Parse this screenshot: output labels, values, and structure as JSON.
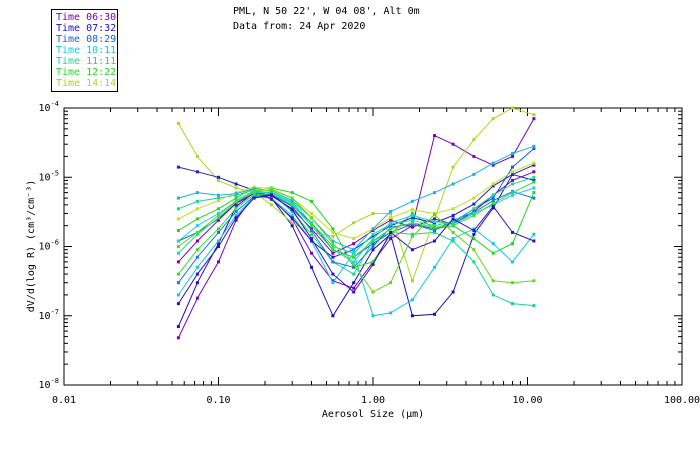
{
  "header": {
    "location": "PML, N 50 22', W 04 08', Alt 0m",
    "data_from": "Data from: 24 Apr 2020"
  },
  "legend": [
    {
      "label": "Time 06:30",
      "color": "#7a00b8"
    },
    {
      "label": "Time 07:32",
      "color": "#1a10c8"
    },
    {
      "label": "Time 08:29",
      "color": "#1060e8"
    },
    {
      "label": "Time 10:11",
      "color": "#10c8e8"
    },
    {
      "label": "Time 11:11",
      "color": "#10d890"
    },
    {
      "label": "Time 12:22",
      "color": "#20d820"
    },
    {
      "label": "Time 14:14",
      "color": "#a8d820"
    }
  ],
  "chart_data": {
    "type": "line",
    "title": "",
    "xlabel": "Aerosol Size (µm)",
    "ylabel": "dV/d(log R) (cm³/cm⁻³)",
    "xscale": "log",
    "yscale": "log",
    "xlim": [
      0.01,
      100
    ],
    "ylim": [
      1e-08,
      0.0001
    ],
    "x_ticks": [
      "0.01",
      "0.10",
      "1.00",
      "10.00",
      "100.00"
    ],
    "y_ticks": [
      {
        "base": "10",
        "exp": "-8"
      },
      {
        "base": "10",
        "exp": "-7"
      },
      {
        "base": "10",
        "exp": "-6"
      },
      {
        "base": "10",
        "exp": "-5"
      },
      {
        "base": "10",
        "exp": "-4"
      }
    ],
    "x": [
      0.055,
      0.073,
      0.1,
      0.13,
      0.17,
      0.22,
      0.3,
      0.4,
      0.55,
      0.75,
      1.0,
      1.3,
      1.8,
      2.5,
      3.3,
      4.5,
      6.0,
      8.0,
      11.0
    ],
    "series": [
      {
        "name": "Time 06:30",
        "color": "#7a00b8",
        "values": [
          4.8e-08,
          1.8e-07,
          6e-07,
          2.4e-06,
          5.5e-06,
          5e-06,
          2.5e-06,
          8e-07,
          3.2e-07,
          2.5e-07,
          6e-07,
          1.3e-06,
          2e-06,
          4e-05,
          3e-05,
          2e-05,
          1.5e-05,
          2e-05,
          7e-05
        ]
      },
      {
        "name": "Time 07:32",
        "color": "#1a10c8",
        "values": [
          7e-08,
          3e-07,
          1.1e-06,
          3.8e-06,
          6e-06,
          5e-06,
          2e-06,
          5e-07,
          1e-07,
          3e-07,
          9e-07,
          1.5e-06,
          1e-07,
          1.05e-07,
          2.2e-07,
          1.5e-06,
          3.6e-06,
          1.1e-05,
          9e-06
        ]
      },
      {
        "name": "Time 08:29",
        "color": "#1060e8",
        "values": [
          1.2e-06,
          1.6e-06,
          2.5e-06,
          4.2e-06,
          6.2e-06,
          5.5e-06,
          4e-06,
          2.2e-06,
          9e-07,
          7e-07,
          1.1e-06,
          1.6e-06,
          2.1e-06,
          1.8e-06,
          2.2e-06,
          3.5e-06,
          5e-06,
          1.4e-05,
          2.6e-05
        ]
      },
      {
        "name": "Time 10:11",
        "color": "#10c8e8",
        "values": [
          2e-07,
          5e-07,
          1.2e-06,
          2.8e-06,
          5.2e-06,
          5e-06,
          2.8e-06,
          1.2e-06,
          3e-07,
          8e-07,
          1e-07,
          1.1e-07,
          1.7e-07,
          5e-07,
          1.3e-06,
          1.8e-06,
          1.1e-06,
          6e-07,
          1.5e-06
        ]
      },
      {
        "name": "Time 11:11",
        "color": "#10d890",
        "values": [
          3.5e-06,
          4.5e-06,
          5e-06,
          5.5e-06,
          6.5e-06,
          5.8e-06,
          3.2e-06,
          1.5e-06,
          6e-07,
          4e-07,
          1.2e-06,
          1.6e-06,
          1.5e-06,
          1.6e-06,
          1.2e-06,
          6e-07,
          2e-07,
          1.5e-07,
          1.4e-07
        ]
      },
      {
        "name": "Time 12:22",
        "color": "#20d820",
        "values": [
          1.7e-06,
          2.5e-06,
          3.5e-06,
          5e-06,
          7e-06,
          7e-06,
          6e-06,
          4.5e-06,
          1.8e-06,
          5e-07,
          6e-07,
          1.5e-06,
          3e-06,
          1.8e-06,
          2e-06,
          1.3e-06,
          8e-07,
          1.1e-06,
          6e-06
        ]
      },
      {
        "name": "Time 14:14",
        "color": "#a8d820",
        "values": [
          6e-05,
          2e-05,
          9e-06,
          7e-06,
          6e-06,
          4e-06,
          2.2e-06,
          1.6e-06,
          1.4e-06,
          2.2e-06,
          3e-06,
          3e-06,
          3.2e-07,
          2.5e-06,
          1.4e-05,
          3.5e-05,
          7e-05,
          0.0001,
          8e-05
        ]
      },
      {
        "name": "Time 06:30",
        "color": "#8a00a8",
        "values": [
          6e-07,
          1.2e-06,
          2.4e-06,
          4.2e-06,
          5.8e-06,
          5.4e-06,
          3.5e-06,
          1.8e-06,
          8e-07,
          1.1e-06,
          1.7e-06,
          2.4e-06,
          1.9e-06,
          2.5e-06,
          2.1e-06,
          3.2e-06,
          5.5e-06,
          9e-06,
          1.2e-05
        ]
      },
      {
        "name": "Time 07:32",
        "color": "#2020d0",
        "values": [
          1.4e-05,
          1.2e-05,
          1e-05,
          8e-06,
          6.5e-06,
          4.8e-06,
          2.6e-06,
          1.2e-06,
          7e-07,
          9e-07,
          1.4e-06,
          2e-06,
          2.6e-06,
          2.2e-06,
          2.8e-06,
          4.1e-06,
          7.5e-06,
          1.1e-05,
          1.5e-05
        ]
      },
      {
        "name": "Time 08:29",
        "color": "#1478f0",
        "values": [
          3e-07,
          7e-07,
          1.6e-06,
          3.2e-06,
          5.3e-06,
          5.6e-06,
          3.8e-06,
          1.7e-06,
          6e-07,
          5e-07,
          1e-06,
          1.9e-06,
          2.1e-06,
          1.7e-06,
          2.4e-06,
          3.1e-06,
          4.6e-06,
          6.2e-06,
          5e-06
        ]
      },
      {
        "name": "Time 10:11",
        "color": "#18d0f0",
        "values": [
          1.2e-06,
          2e-06,
          3e-06,
          4.5e-06,
          6e-06,
          6e-06,
          4.2e-06,
          2e-06,
          9e-07,
          6e-07,
          1.3e-06,
          2.2e-06,
          2.8e-06,
          2.3e-06,
          2.1e-06,
          3e-06,
          4e-06,
          5.5e-06,
          7e-06
        ]
      },
      {
        "name": "Time 11:11",
        "color": "#10e0a0",
        "values": [
          8e-07,
          1.5e-06,
          2.6e-06,
          4.4e-06,
          6.2e-06,
          6.1e-06,
          4.4e-06,
          2.2e-06,
          1e-06,
          8e-07,
          1.5e-06,
          2.1e-06,
          2.4e-06,
          2e-06,
          2.3e-06,
          3.5e-06,
          5.5e-06,
          8e-06,
          1e-05
        ]
      },
      {
        "name": "Time 12:22",
        "color": "#30e030",
        "values": [
          4e-07,
          9e-07,
          1.8e-06,
          3.6e-06,
          5.6e-06,
          5.8e-06,
          4e-06,
          2e-06,
          9e-07,
          7e-07,
          1.2e-06,
          1.8e-06,
          2.2e-06,
          1.9e-06,
          2e-06,
          2.8e-06,
          4.2e-06,
          6e-06,
          8.5e-06
        ]
      },
      {
        "name": "Time 14:14",
        "color": "#c0e020",
        "values": [
          2.5e-06,
          3.5e-06,
          4.6e-06,
          6e-06,
          7.2e-06,
          6.8e-06,
          5e-06,
          3e-06,
          1.6e-06,
          1.3e-06,
          1.8e-06,
          2.6e-06,
          3.4e-06,
          3e-06,
          3.5e-06,
          5e-06,
          8e-06,
          1.2e-05,
          1.6e-05
        ]
      },
      {
        "name": "Time 07:32",
        "color": "#3010c0",
        "values": [
          1.5e-07,
          4e-07,
          1e-06,
          2.6e-06,
          5e-06,
          5.6e-06,
          3.4e-06,
          1.3e-06,
          4e-07,
          2.2e-07,
          5.5e-07,
          1.6e-06,
          9e-07,
          1.2e-06,
          2.5e-06,
          1.7e-06,
          3.8e-06,
          1.6e-06,
          1.2e-06
        ]
      },
      {
        "name": "Time 10:11",
        "color": "#20b0e8",
        "values": [
          5e-06,
          6e-06,
          5.5e-06,
          5.8e-06,
          6.8e-06,
          6.4e-06,
          4.6e-06,
          2.6e-06,
          1.2e-06,
          9e-07,
          1.8e-06,
          3.2e-06,
          4.5e-06,
          6e-06,
          8e-06,
          1.1e-05,
          1.6e-05,
          2.2e-05,
          2.8e-05
        ]
      },
      {
        "name": "Time 12:22",
        "color": "#60d818",
        "values": [
          1e-06,
          1.6e-06,
          2.8e-06,
          4.6e-06,
          6.4e-06,
          6.6e-06,
          5e-06,
          2.6e-06,
          1.1e-06,
          5.5e-07,
          2.2e-07,
          3e-07,
          1.4e-06,
          2.9e-06,
          1.6e-06,
          9e-07,
          3.2e-07,
          3e-07,
          3.2e-07
        ]
      }
    ]
  }
}
